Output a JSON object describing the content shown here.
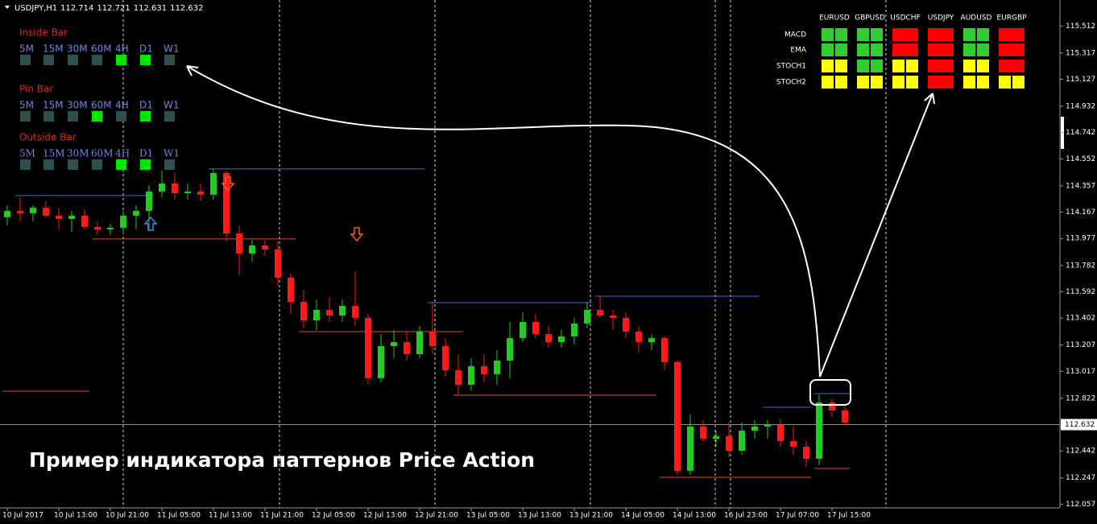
{
  "header": {
    "symbol": "USDJPY,H1",
    "prices": [
      "112.714",
      "112.721",
      "112.631",
      "112.632"
    ]
  },
  "caption": "Пример индикатора паттернов Price Action",
  "timeframes": [
    "5M",
    "15M",
    "30M",
    "60M",
    "4H",
    "D1",
    "W1"
  ],
  "patterns": [
    {
      "name": "Inside Bar",
      "signals": [
        false,
        false,
        false,
        false,
        true,
        true,
        false
      ]
    },
    {
      "name": "Pin Bar",
      "signals": [
        false,
        false,
        false,
        true,
        false,
        true,
        false
      ]
    },
    {
      "name": "Outside Bar",
      "signals": [
        false,
        false,
        false,
        false,
        true,
        true,
        false
      ]
    }
  ],
  "matrix": {
    "columns": [
      "EURUSD",
      "GBPUSD",
      "USDCHF",
      "USDJPY",
      "AUDUSD",
      "EURGBP"
    ],
    "rows": [
      {
        "name": "MACD",
        "cells": [
          "green",
          "green",
          "red",
          "red",
          "green",
          "red"
        ]
      },
      {
        "name": "EMA",
        "cells": [
          "green",
          "green",
          "red",
          "red",
          "green",
          "red"
        ]
      },
      {
        "name": "STOCH1",
        "cells": [
          "yellow",
          "green",
          "yellow",
          "red",
          "yellow",
          "red"
        ]
      },
      {
        "name": "STOCH2",
        "cells": [
          "yellow",
          "yellow",
          "yellow",
          "red",
          "yellow",
          "yellow"
        ]
      }
    ]
  },
  "chart_data": {
    "type": "candlestick",
    "categories": [
      "10 Jul 2017",
      null,
      null,
      null,
      "10 Jul 13:00",
      null,
      null,
      null,
      "10 Jul 21:00",
      null,
      null,
      null,
      "11 Jul 05:00",
      null,
      null,
      null,
      "11 Jul 13:00",
      null,
      null,
      null,
      "11 Jul 21:00",
      null,
      null,
      null,
      "12 Jul 05:00",
      null,
      null,
      null,
      "12 Jul 13:00",
      null,
      null,
      null,
      "12 Jul 21:00",
      null,
      null,
      null,
      "13 Jul 05:00",
      null,
      null,
      null,
      "13 Jul 13:00",
      null,
      null,
      null,
      "13 Jul 21:00",
      null,
      null,
      null,
      "14 Jul 05:00",
      null,
      null,
      null,
      "14 Jul 13:00",
      null,
      null,
      null,
      "16 Jul 23:00",
      null,
      null,
      null,
      "17 Jul 07:00",
      null,
      null,
      null,
      "17 Jul 15:00",
      null
    ],
    "open": [
      114.13,
      114.176,
      114.159,
      114.199,
      114.141,
      114.118,
      114.141,
      114.06,
      114.042,
      114.054,
      114.141,
      114.176,
      114.316,
      114.374,
      114.304,
      114.316,
      114.293,
      114.45,
      114.013,
      113.868,
      113.926,
      113.897,
      113.694,
      113.519,
      113.385,
      113.461,
      113.42,
      113.49,
      113.403,
      112.967,
      113.199,
      113.228,
      113.141,
      113.304,
      113.199,
      113.025,
      112.92,
      113.054,
      112.996,
      113.094,
      113.257,
      113.374,
      113.286,
      113.228,
      113.269,
      113.362,
      113.461,
      113.42,
      113.403,
      113.304,
      113.228,
      113.257,
      113.083,
      112.298,
      112.618,
      112.53,
      112.548,
      112.443,
      112.588,
      112.618,
      112.629,
      112.513,
      112.472,
      112.385,
      112.792,
      112.734
    ],
    "high": [
      114.217,
      114.275,
      114.217,
      114.246,
      114.199,
      114.176,
      114.188,
      114.101,
      114.083,
      114.176,
      114.217,
      114.362,
      114.467,
      114.45,
      114.374,
      114.374,
      114.479,
      114.467,
      114.072,
      113.967,
      113.967,
      113.955,
      113.723,
      113.606,
      113.536,
      113.548,
      113.536,
      113.734,
      113.432,
      113.286,
      113.315,
      113.304,
      113.345,
      113.519,
      113.257,
      113.141,
      113.112,
      113.141,
      113.17,
      113.374,
      113.443,
      113.432,
      113.345,
      113.315,
      113.403,
      113.519,
      113.56,
      113.461,
      113.443,
      113.345,
      113.286,
      113.269,
      113.094,
      112.705,
      112.664,
      112.588,
      112.647,
      112.647,
      112.664,
      112.664,
      112.676,
      112.618,
      112.513,
      112.85,
      112.821,
      112.763
    ],
    "low": [
      114.072,
      114.101,
      114.101,
      114.13,
      114.042,
      114.025,
      114.042,
      114.002,
      114.002,
      114.013,
      114.042,
      114.042,
      114.275,
      114.258,
      114.258,
      114.246,
      114.258,
      113.955,
      113.711,
      113.81,
      113.851,
      113.635,
      113.432,
      113.327,
      113.315,
      113.374,
      113.374,
      113.345,
      112.92,
      112.937,
      113.112,
      113.094,
      113.112,
      113.141,
      112.978,
      112.85,
      112.879,
      112.937,
      112.92,
      112.967,
      113.228,
      113.257,
      113.188,
      113.188,
      113.211,
      113.327,
      113.403,
      113.315,
      113.257,
      113.153,
      113.17,
      113.025,
      112.269,
      112.269,
      112.513,
      112.472,
      112.397,
      112.414,
      112.53,
      112.53,
      112.472,
      112.414,
      112.327,
      112.338,
      112.687,
      112.629
    ],
    "close": [
      114.176,
      114.159,
      114.199,
      114.141,
      114.118,
      114.141,
      114.06,
      114.042,
      114.054,
      114.141,
      114.176,
      114.316,
      114.374,
      114.304,
      114.316,
      114.293,
      114.45,
      114.013,
      113.868,
      113.926,
      113.897,
      113.694,
      113.519,
      113.385,
      113.461,
      113.42,
      113.49,
      113.403,
      112.967,
      113.199,
      113.228,
      113.141,
      113.304,
      113.199,
      113.025,
      112.92,
      113.054,
      112.996,
      113.094,
      113.257,
      113.374,
      113.286,
      113.228,
      113.269,
      113.362,
      113.461,
      113.42,
      113.403,
      113.304,
      113.228,
      113.257,
      113.083,
      112.298,
      112.618,
      112.53,
      112.548,
      112.443,
      112.588,
      112.618,
      112.629,
      112.513,
      112.472,
      112.385,
      112.792,
      112.734,
      112.647
    ],
    "up_color": "#22cc22",
    "down_color": "#ff1a1a",
    "levels": [
      {
        "price": 114.287,
        "color": "#3b6be0"
      },
      {
        "price": 114.479,
        "color": "#3b6be0"
      },
      {
        "price": 113.513,
        "color": "#3b6be0"
      },
      {
        "price": 113.56,
        "color": "#3b6be0"
      },
      {
        "price": 112.757,
        "color": "#3b6be0"
      },
      {
        "price": 112.856,
        "color": "#3b6be0"
      },
      {
        "price": 113.973,
        "color": "#e0501a"
      },
      {
        "price": 113.304,
        "color": "#e0501a"
      },
      {
        "price": 112.844,
        "color": "#e0501a"
      },
      {
        "price": 112.873,
        "color": "#e0501a"
      },
      {
        "price": 112.251,
        "color": "#e0501a"
      },
      {
        "price": 112.315,
        "color": "#e0501a"
      }
    ],
    "current_price": 112.632,
    "ylim": [
      112.03,
      115.7
    ],
    "yticks": [
      115.512,
      115.317,
      115.127,
      114.932,
      114.742,
      114.552,
      114.357,
      114.167,
      113.977,
      113.782,
      113.592,
      113.402,
      113.207,
      113.017,
      112.822,
      112.442,
      112.247,
      112.057
    ]
  }
}
